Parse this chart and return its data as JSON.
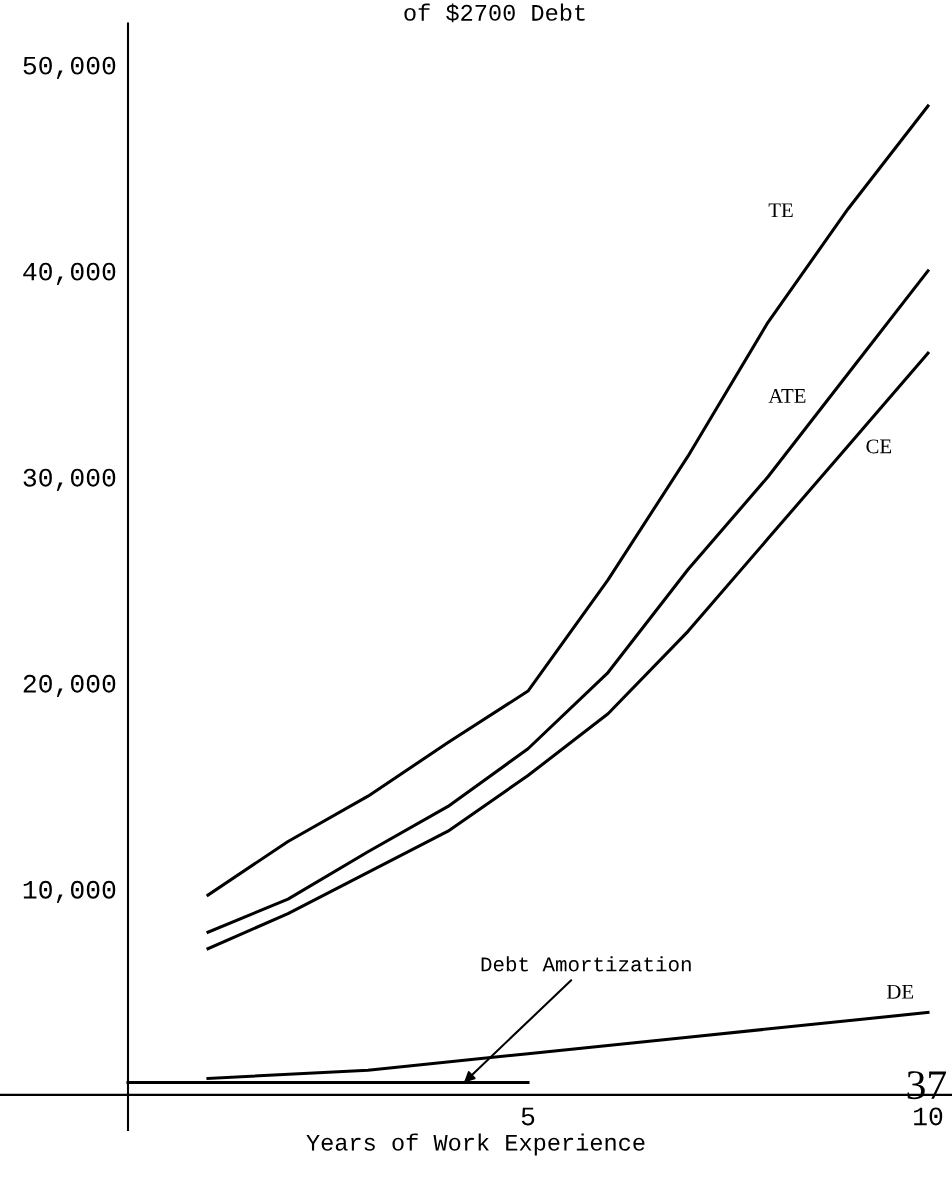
{
  "chart_data": {
    "type": "line",
    "title": "of $2700 Debt",
    "xlabel": "Years of Work Experience",
    "xlim": [
      -1.6,
      10.3
    ],
    "xticks": [
      5,
      10
    ],
    "ylim": [
      -1700,
      52000
    ],
    "yticks": [
      {
        "value": 10000,
        "label": "10,000"
      },
      {
        "value": 20000,
        "label": "20,000"
      },
      {
        "value": 30000,
        "label": "30,000"
      },
      {
        "value": 40000,
        "label": "40,000"
      },
      {
        "value": 50000,
        "label": "50,000"
      }
    ],
    "x": [
      1,
      2,
      3,
      4,
      5,
      6,
      7,
      8,
      9,
      10
    ],
    "series": [
      {
        "name": "TE",
        "color": "#000000",
        "values": [
          9700,
          12300,
          14500,
          17100,
          19600,
          25000,
          31000,
          37500,
          43000,
          48000
        ]
      },
      {
        "name": "ATE",
        "color": "#000000",
        "values": [
          7900,
          9500,
          11800,
          14000,
          16800,
          20500,
          25500,
          30000,
          35000,
          40000
        ]
      },
      {
        "name": "CE",
        "color": "#000000",
        "values": [
          7100,
          8800,
          10800,
          12800,
          15500,
          18500,
          22500,
          27000,
          31500,
          36000
        ]
      },
      {
        "name": "DE",
        "color": "#000000",
        "x": [
          1,
          3,
          5,
          7,
          10
        ],
        "values": [
          800,
          1200,
          2000,
          2800,
          4000
        ]
      },
      {
        "color": "#000000",
        "x": [
          0,
          5
        ],
        "values": [
          600,
          600
        ]
      }
    ],
    "annotations": [
      {
        "text": "Debt Amortization",
        "x": 4.2,
        "y": 600
      },
      "37"
    ],
    "grid": false,
    "legend": false,
    "line_style": "solid",
    "marker": "none"
  }
}
